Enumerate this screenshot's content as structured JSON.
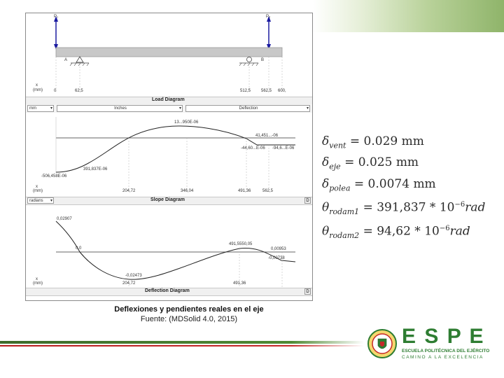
{
  "beam": {
    "load_left": "P₁",
    "load_right": "P₂",
    "support_a": "A",
    "support_b": "B",
    "axis_x_label": "x",
    "axis_unit": "(mm)",
    "positions": [
      "0",
      "62,5",
      "512,5",
      "562,5",
      "600,"
    ]
  },
  "load_diagram": {
    "title": "Load Diagram",
    "unit_select": "mm",
    "select_mid": "Inches",
    "select_right": "Deflection"
  },
  "slope_chart": {
    "labels": {
      "max": "13...950E-06",
      "mid_right_a": "41,451...-06",
      "mid_right_b": "-44,60...E-06",
      "mid_right_c": "-94,6...E-06",
      "left_a": "-506,458E-06",
      "left_b": "391,837E-06"
    },
    "axis_x_label": "x",
    "axis_unit": "(mm)",
    "ticks": [
      "204,72",
      "346,04",
      "491,36",
      "562,5"
    ]
  },
  "slope_diagram": {
    "title": "Slope Diagram",
    "unit_select": "radians",
    "d_button": "D"
  },
  "deflection_chart": {
    "labels": {
      "start": "0,02907",
      "near_zero": "0,0",
      "min": "-0,02473",
      "peak": "491,5550,05",
      "end_a": "0,00953",
      "end_b": "-0,00738"
    },
    "axis_x_label": "x",
    "axis_unit": "(mm)",
    "ticks": [
      "204,72",
      "491,36"
    ]
  },
  "deflection_diagram": {
    "title": "Deflection Diagram",
    "d_button": "D"
  },
  "formulas": [
    {
      "symbol": "δ",
      "sub": "vent",
      "rhs": "= 0.029 mm"
    },
    {
      "symbol": "δ",
      "sub": "eje",
      "rhs": "= 0.025 mm"
    },
    {
      "symbol": "δ",
      "sub": "polea",
      "rhs": "= 0.0074 mm"
    },
    {
      "symbol": "θ",
      "sub": "rodam1",
      "rhs": "= 391,837 * 10",
      "exp": "−6",
      "tail": "rad"
    },
    {
      "symbol": "θ",
      "sub": "rodam2",
      "rhs": "= 94,62 * 10",
      "exp": "−6",
      "tail": "rad"
    }
  ],
  "caption": {
    "title": "Deflexiones y pendientes reales en el eje",
    "source": "Fuente: (MDSolid 4.0, 2015)"
  },
  "logo": {
    "brand": "E S P E",
    "line1": "ESCUELA POLITÉCNICA DEL EJÉRCITO",
    "line2": "CAMINO A LA EXCELENCIA"
  },
  "colors": {
    "green_band": "#8fb46a",
    "footer_green": "#4f8a34",
    "footer_red": "#c62828",
    "logo_green": "#2e7d32",
    "logo_red": "#c62828",
    "load_arrow": "#1a1aa0",
    "beam": "#c8c8c8"
  }
}
